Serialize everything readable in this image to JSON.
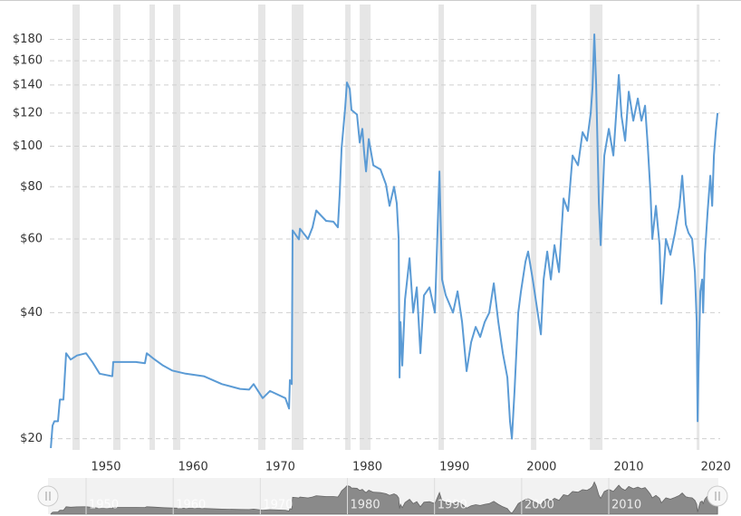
{
  "chart_data": {
    "type": "line",
    "log_scale": true,
    "grid": true,
    "color": "#5b9bd5",
    "xlim": [
      1943.55,
      2020.5
    ],
    "ylim": [
      18.8,
      218
    ],
    "xticks": [
      1950,
      1960,
      1970,
      1980,
      1990,
      2000,
      2010,
      2020
    ],
    "yticks": [
      {
        "value": 20,
        "label": "$20"
      },
      {
        "value": 40,
        "label": "$40"
      },
      {
        "value": 60,
        "label": "$60"
      },
      {
        "value": 80,
        "label": "$80"
      },
      {
        "value": 100,
        "label": "$100"
      },
      {
        "value": 120,
        "label": "$120"
      },
      {
        "value": 140,
        "label": "$140"
      },
      {
        "value": 160,
        "label": "$160"
      },
      {
        "value": 180,
        "label": "$180"
      }
    ],
    "recessions": [
      [
        1946.15,
        1946.98
      ],
      [
        1950.83,
        1951.66
      ],
      [
        1954.99,
        1955.62
      ],
      [
        1957.7,
        1958.53
      ],
      [
        1967.47,
        1968.3
      ],
      [
        1971.32,
        1972.67
      ],
      [
        1977.46,
        1978.08
      ],
      [
        1979.12,
        1980.37
      ],
      [
        1988.17,
        1988.79
      ],
      [
        1998.78,
        1999.4
      ],
      [
        2005.54,
        2006.99
      ],
      [
        2017.81,
        2018.12
      ]
    ],
    "navigator_xticks": [
      1950,
      1960,
      1970,
      1980,
      1990,
      2000,
      2010
    ],
    "x": [
      1943.66,
      1943.86,
      1944.07,
      1944.49,
      1944.7,
      1945.11,
      1945.42,
      1945.94,
      1946.67,
      1947.71,
      1948.44,
      1949.27,
      1950.73,
      1950.83,
      1953.43,
      1954.47,
      1954.68,
      1955.51,
      1956.55,
      1957.59,
      1959.15,
      1961.23,
      1963.31,
      1965.39,
      1966.43,
      1966.95,
      1967.99,
      1968.82,
      1970.59,
      1971.01,
      1971.11,
      1971.32,
      1971.42,
      1972.15,
      1972.26,
      1973.19,
      1973.71,
      1974.13,
      1975.27,
      1976.1,
      1976.62,
      1976.83,
      1977.04,
      1977.46,
      1977.66,
      1977.98,
      1978.18,
      1978.81,
      1979.12,
      1979.43,
      1979.64,
      1979.85,
      1980.16,
      1980.68,
      1981.51,
      1982.14,
      1982.55,
      1983.07,
      1983.38,
      1983.59,
      1983.7,
      1983.8,
      1984.01,
      1984.32,
      1984.84,
      1985.26,
      1985.67,
      1986.09,
      1986.5,
      1987.13,
      1987.75,
      1988.27,
      1988.58,
      1989.0,
      1989.83,
      1990.35,
      1990.87,
      1991.39,
      1991.91,
      1992.43,
      1992.95,
      1993.47,
      1993.99,
      1994.51,
      1995.03,
      1995.55,
      1996.07,
      1996.38,
      1996.59,
      1996.9,
      1997.32,
      1997.63,
      1998.15,
      1998.46,
      1998.98,
      1999.4,
      1999.92,
      2000.23,
      2000.65,
      2001.06,
      2001.48,
      2002.0,
      2002.52,
      2003.04,
      2003.56,
      2004.18,
      2004.7,
      2005.22,
      2005.64,
      2005.85,
      2006.06,
      2006.26,
      2006.58,
      2006.78,
      2007.2,
      2007.72,
      2008.24,
      2008.86,
      2009.18,
      2009.59,
      2010.01,
      2010.53,
      2011.05,
      2011.46,
      2011.88,
      2012.19,
      2012.5,
      2012.71,
      2013.13,
      2013.54,
      2013.75,
      2014.27,
      2014.79,
      2015.31,
      2015.83,
      2016.14,
      2016.56,
      2016.87,
      2017.29,
      2017.6,
      2017.81,
      2017.91,
      2018.02,
      2018.22,
      2018.43,
      2018.54,
      2018.74,
      2019.06,
      2019.37,
      2019.58,
      2019.78,
      2019.99,
      2020.2
    ],
    "values": [
      19.0,
      21.5,
      22,
      22,
      24.8,
      24.8,
      32,
      30.9,
      31.6,
      32,
      30.5,
      28.6,
      28.2,
      30.5,
      30.5,
      30.3,
      32,
      31,
      29.9,
      29.1,
      28.6,
      28.2,
      27,
      26.3,
      26.2,
      27,
      25,
      26,
      25,
      23.6,
      27.6,
      27,
      62.9,
      59.9,
      63.5,
      60,
      64,
      70.2,
      66.3,
      66,
      64,
      77,
      99,
      124,
      142,
      137,
      122,
      119,
      102,
      110,
      96,
      87,
      104,
      90,
      88,
      81,
      72,
      80,
      73,
      60,
      28,
      38,
      29.9,
      43,
      54,
      40,
      46,
      32,
      44,
      46,
      40,
      87,
      48,
      44,
      40,
      45,
      38,
      29,
      34,
      37,
      35,
      38,
      40,
      47,
      38,
      32,
      28,
      22,
      20,
      26,
      40,
      45,
      53,
      56,
      48,
      42,
      35.5,
      48,
      56,
      48,
      58,
      50,
      75,
      70,
      95,
      90,
      108,
      103,
      120,
      138,
      185,
      140,
      73,
      58,
      95,
      110,
      95,
      148,
      118,
      103,
      135,
      115,
      130,
      115,
      125,
      100,
      77,
      60,
      72,
      58,
      42,
      60,
      55,
      62,
      72,
      85,
      65,
      62,
      60,
      50,
      38,
      22,
      30,
      45,
      48,
      40,
      55,
      70,
      85,
      72,
      95,
      108,
      120
    ]
  }
}
